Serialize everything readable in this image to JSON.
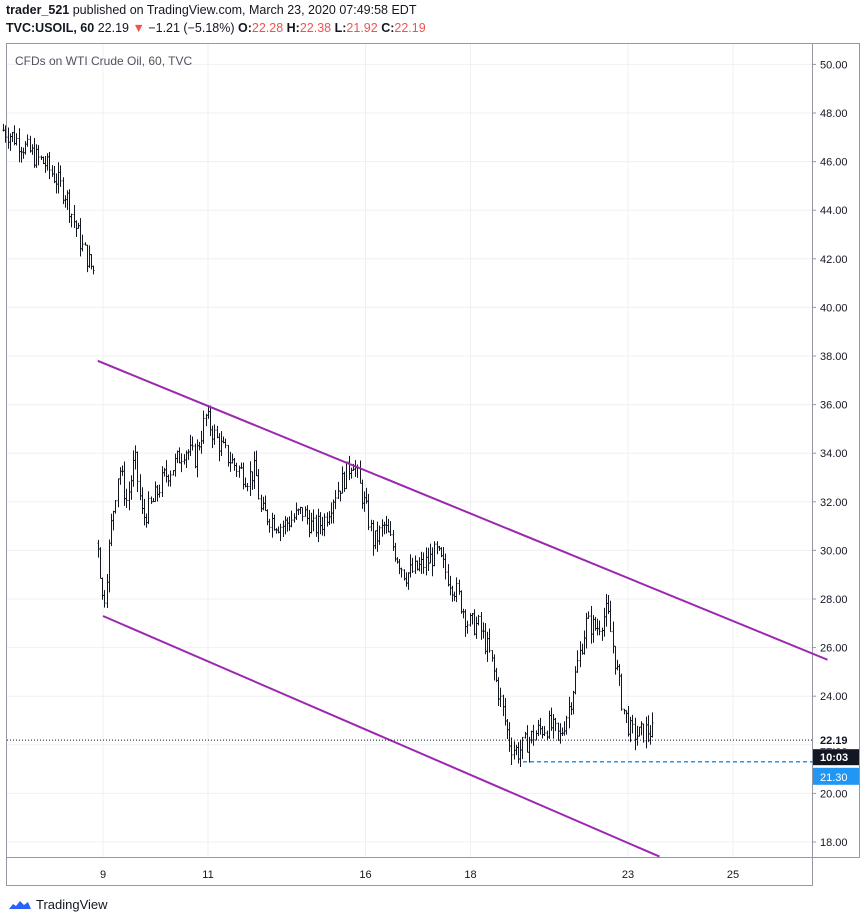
{
  "header": {
    "author": "trader_521",
    "published": "published on TradingView.com, March 23, 2020 07:49:58 EDT",
    "symbol": "TVC:USOIL, 60",
    "last": "22.19",
    "arrow": "▼",
    "change": "−1.21 (−5.18%)",
    "o_label": "O:",
    "o_value": "22.28",
    "h_label": "H:",
    "h_value": "22.38",
    "l_label": "L:",
    "l_value": "21.92",
    "c_label": "C:",
    "c_value": "22.19"
  },
  "footer": {
    "brand": "TradingView",
    "logo_icon": "tradingview-logo-icon"
  },
  "colors": {
    "channel": "#9c27b0",
    "down": "#ef5350",
    "level": "#2196f3",
    "candle": "#131722"
  },
  "chart_data": {
    "type": "candlestick",
    "title": "CFDs on WTI Crude Oil, 60, TVC",
    "ylim": [
      17,
      51
    ],
    "y_ticks": [
      "18.00",
      "20.00",
      "22.00",
      "24.00",
      "26.00",
      "28.00",
      "30.00",
      "32.00",
      "34.00",
      "36.00",
      "38.00",
      "40.00",
      "42.00",
      "44.00",
      "46.00",
      "48.00",
      "50.00"
    ],
    "x_ticks": [
      {
        "label": "9",
        "day": 9
      },
      {
        "label": "11",
        "day": 11
      },
      {
        "label": "16",
        "day": 14
      },
      {
        "label": "18",
        "day": 16
      },
      {
        "label": "23",
        "day": 19
      },
      {
        "label": "25",
        "day": 21
      }
    ],
    "xlim": [
      7.05,
      22.8
    ],
    "last_price_label": "22.19",
    "countdown_label": "10:03",
    "level_label": "21.30",
    "last_price": 22.19,
    "level": 21.3,
    "channel_upper": [
      [
        8.9,
        37.8
      ],
      [
        22.8,
        25.5
      ]
    ],
    "channel_lower": [
      [
        9.0,
        27.3
      ],
      [
        19.6,
        17.4
      ]
    ],
    "level_line": [
      [
        17.0,
        21.3
      ],
      [
        22.8,
        21.3
      ]
    ],
    "segments": [
      {
        "points": [
          [
            7.1,
            47.3
          ],
          [
            7.3,
            47.0
          ],
          [
            7.5,
            46.6
          ],
          [
            7.7,
            46.2
          ],
          [
            7.9,
            45.9
          ],
          [
            8.1,
            45.3
          ],
          [
            8.3,
            44.6
          ],
          [
            8.45,
            43.5
          ],
          [
            8.6,
            42.5
          ],
          [
            8.75,
            41.8
          ],
          [
            8.85,
            41.4
          ]
        ]
      },
      {
        "points": [
          [
            8.9,
            30.3
          ],
          [
            9.0,
            27.6
          ],
          [
            9.15,
            31.0
          ],
          [
            9.3,
            33.5
          ],
          [
            9.45,
            32.0
          ],
          [
            9.6,
            33.8
          ],
          [
            9.75,
            31.3
          ],
          [
            9.95,
            32.0
          ],
          [
            10.15,
            33.0
          ],
          [
            10.35,
            33.5
          ],
          [
            10.55,
            34.2
          ],
          [
            10.75,
            33.8
          ],
          [
            10.95,
            35.5
          ],
          [
            11.15,
            34.6
          ],
          [
            11.35,
            33.9
          ],
          [
            11.55,
            33.4
          ],
          [
            11.75,
            33.0
          ],
          [
            11.9,
            33.3
          ],
          [
            12.0,
            31.6
          ],
          [
            12.2,
            31.3
          ],
          [
            12.4,
            31.0
          ],
          [
            12.6,
            31.3
          ],
          [
            12.8,
            31.6
          ],
          [
            13.0,
            30.9
          ],
          [
            13.2,
            31.2
          ],
          [
            13.4,
            32.3
          ],
          [
            13.6,
            33.0
          ],
          [
            13.75,
            33.8
          ],
          [
            13.9,
            32.5
          ],
          [
            14.05,
            31.3
          ],
          [
            14.15,
            30.3
          ],
          [
            14.35,
            31.0
          ],
          [
            14.55,
            30.0
          ],
          [
            14.75,
            29.0
          ],
          [
            14.95,
            29.2
          ],
          [
            15.15,
            29.5
          ],
          [
            15.35,
            29.9
          ],
          [
            15.55,
            29.0
          ],
          [
            15.75,
            28.2
          ],
          [
            15.95,
            27.0
          ],
          [
            16.15,
            26.9
          ],
          [
            16.35,
            25.8
          ],
          [
            16.55,
            24.0
          ],
          [
            16.75,
            22.0
          ],
          [
            16.9,
            21.7
          ],
          [
            17.1,
            22.2
          ],
          [
            17.3,
            22.6
          ],
          [
            17.5,
            22.8
          ],
          [
            17.7,
            22.3
          ],
          [
            17.9,
            23.8
          ],
          [
            18.05,
            25.5
          ],
          [
            18.2,
            27.0
          ],
          [
            18.4,
            26.8
          ],
          [
            18.6,
            27.5
          ],
          [
            18.75,
            25.5
          ],
          [
            18.9,
            23.5
          ],
          [
            19.05,
            22.5
          ],
          [
            19.2,
            22.4
          ],
          [
            19.35,
            22.6
          ],
          [
            19.5,
            22.5
          ]
        ],
        "last_down": true
      }
    ]
  }
}
